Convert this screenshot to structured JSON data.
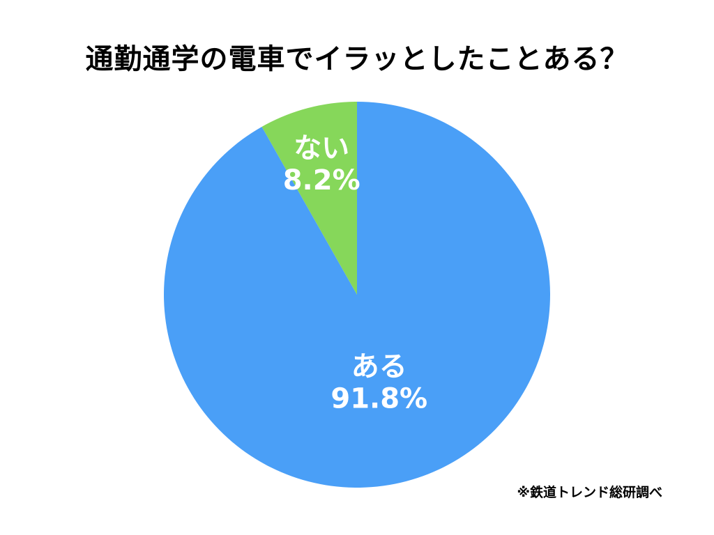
{
  "chart_data": {
    "type": "pie",
    "title": "通勤通学の電車でイラッとしたことある？",
    "slices": [
      {
        "label": "ある",
        "value": 91.8,
        "value_label": "91.8%",
        "color": "#4a9ff7"
      },
      {
        "label": "ない",
        "value": 8.2,
        "value_label": "8.2%",
        "color": "#86d75a"
      }
    ],
    "start_angle": "12 o'clock",
    "direction": "clockwise"
  },
  "source_note": "※鉄道トレンド総研調べ"
}
